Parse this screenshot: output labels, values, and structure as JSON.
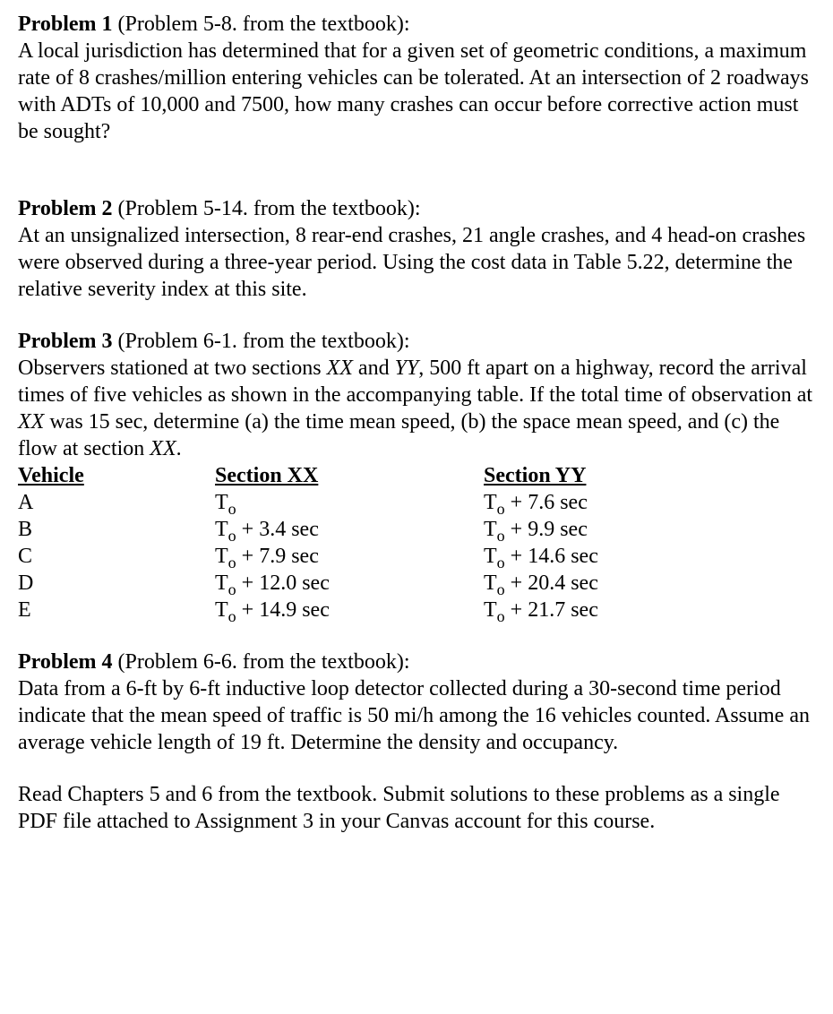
{
  "problem1": {
    "label": "Problem 1",
    "source": " (Problem 5-8. from the textbook):",
    "body": "A local jurisdiction has determined that for a given set of geometric conditions, a maximum rate of 8 crashes/million entering vehicles can be tolerated. At an intersection of 2 roadways with ADTs of 10,000 and 7500, how many crashes can occur before corrective action must be sought?"
  },
  "problem2": {
    "label": "Problem 2",
    "source": " (Problem 5-14. from the textbook):",
    "body": "At an unsignalized intersection, 8 rear-end crashes, 21 angle crashes, and 4 head-on crashes were observed during a three-year period. Using the cost data in Table 5.22, determine the relative severity index at this site."
  },
  "problem3": {
    "label": "Problem 3",
    "source": " (Problem 6-1. from the textbook):",
    "body_pre": "Observers stationed at two sections ",
    "xx1": "XX",
    "body_mid1": " and ",
    "yy1": "YY",
    "body_mid2": ", 500 ft apart on a highway, record the arrival times of five vehicles as shown in the accompanying table. If the total time of observation at ",
    "xx2": "XX",
    "body_mid3": " was 15 sec, determine (a) the time mean speed, (b) the space mean speed, and (c) the flow at section ",
    "xx3": "XX",
    "body_post": ".",
    "table": {
      "headers": {
        "vehicle": "Vehicle",
        "xx": "Section XX",
        "yy": "Section YY"
      },
      "rows": [
        {
          "v": "A",
          "xx_suffix": "",
          "yy_suffix": " + 7.6 sec"
        },
        {
          "v": "B",
          "xx_suffix": " + 3.4 sec",
          "yy_suffix": " + 9.9 sec"
        },
        {
          "v": "C",
          "xx_suffix": " + 7.9 sec",
          "yy_suffix": " + 14.6 sec"
        },
        {
          "v": "D",
          "xx_suffix": " + 12.0 sec",
          "yy_suffix": " + 20.4 sec"
        },
        {
          "v": "E",
          "xx_suffix": " + 14.9 sec",
          "yy_suffix": " + 21.7 sec"
        }
      ],
      "t_base": "T",
      "t_sub": "o"
    }
  },
  "problem4": {
    "label": "Problem 4",
    "source": " (Problem 6-6. from the textbook):",
    "body": "Data from a 6-ft by 6-ft inductive loop detector collected during a 30-second time period indicate that the mean speed of traffic is 50 mi/h among the 16 vehicles counted. Assume an average vehicle length of 19 ft. Determine the density and occupancy."
  },
  "instructions": "Read Chapters 5 and 6 from the textbook. Submit solutions to these problems as a single PDF file attached to Assignment 3 in your Canvas account for this course."
}
